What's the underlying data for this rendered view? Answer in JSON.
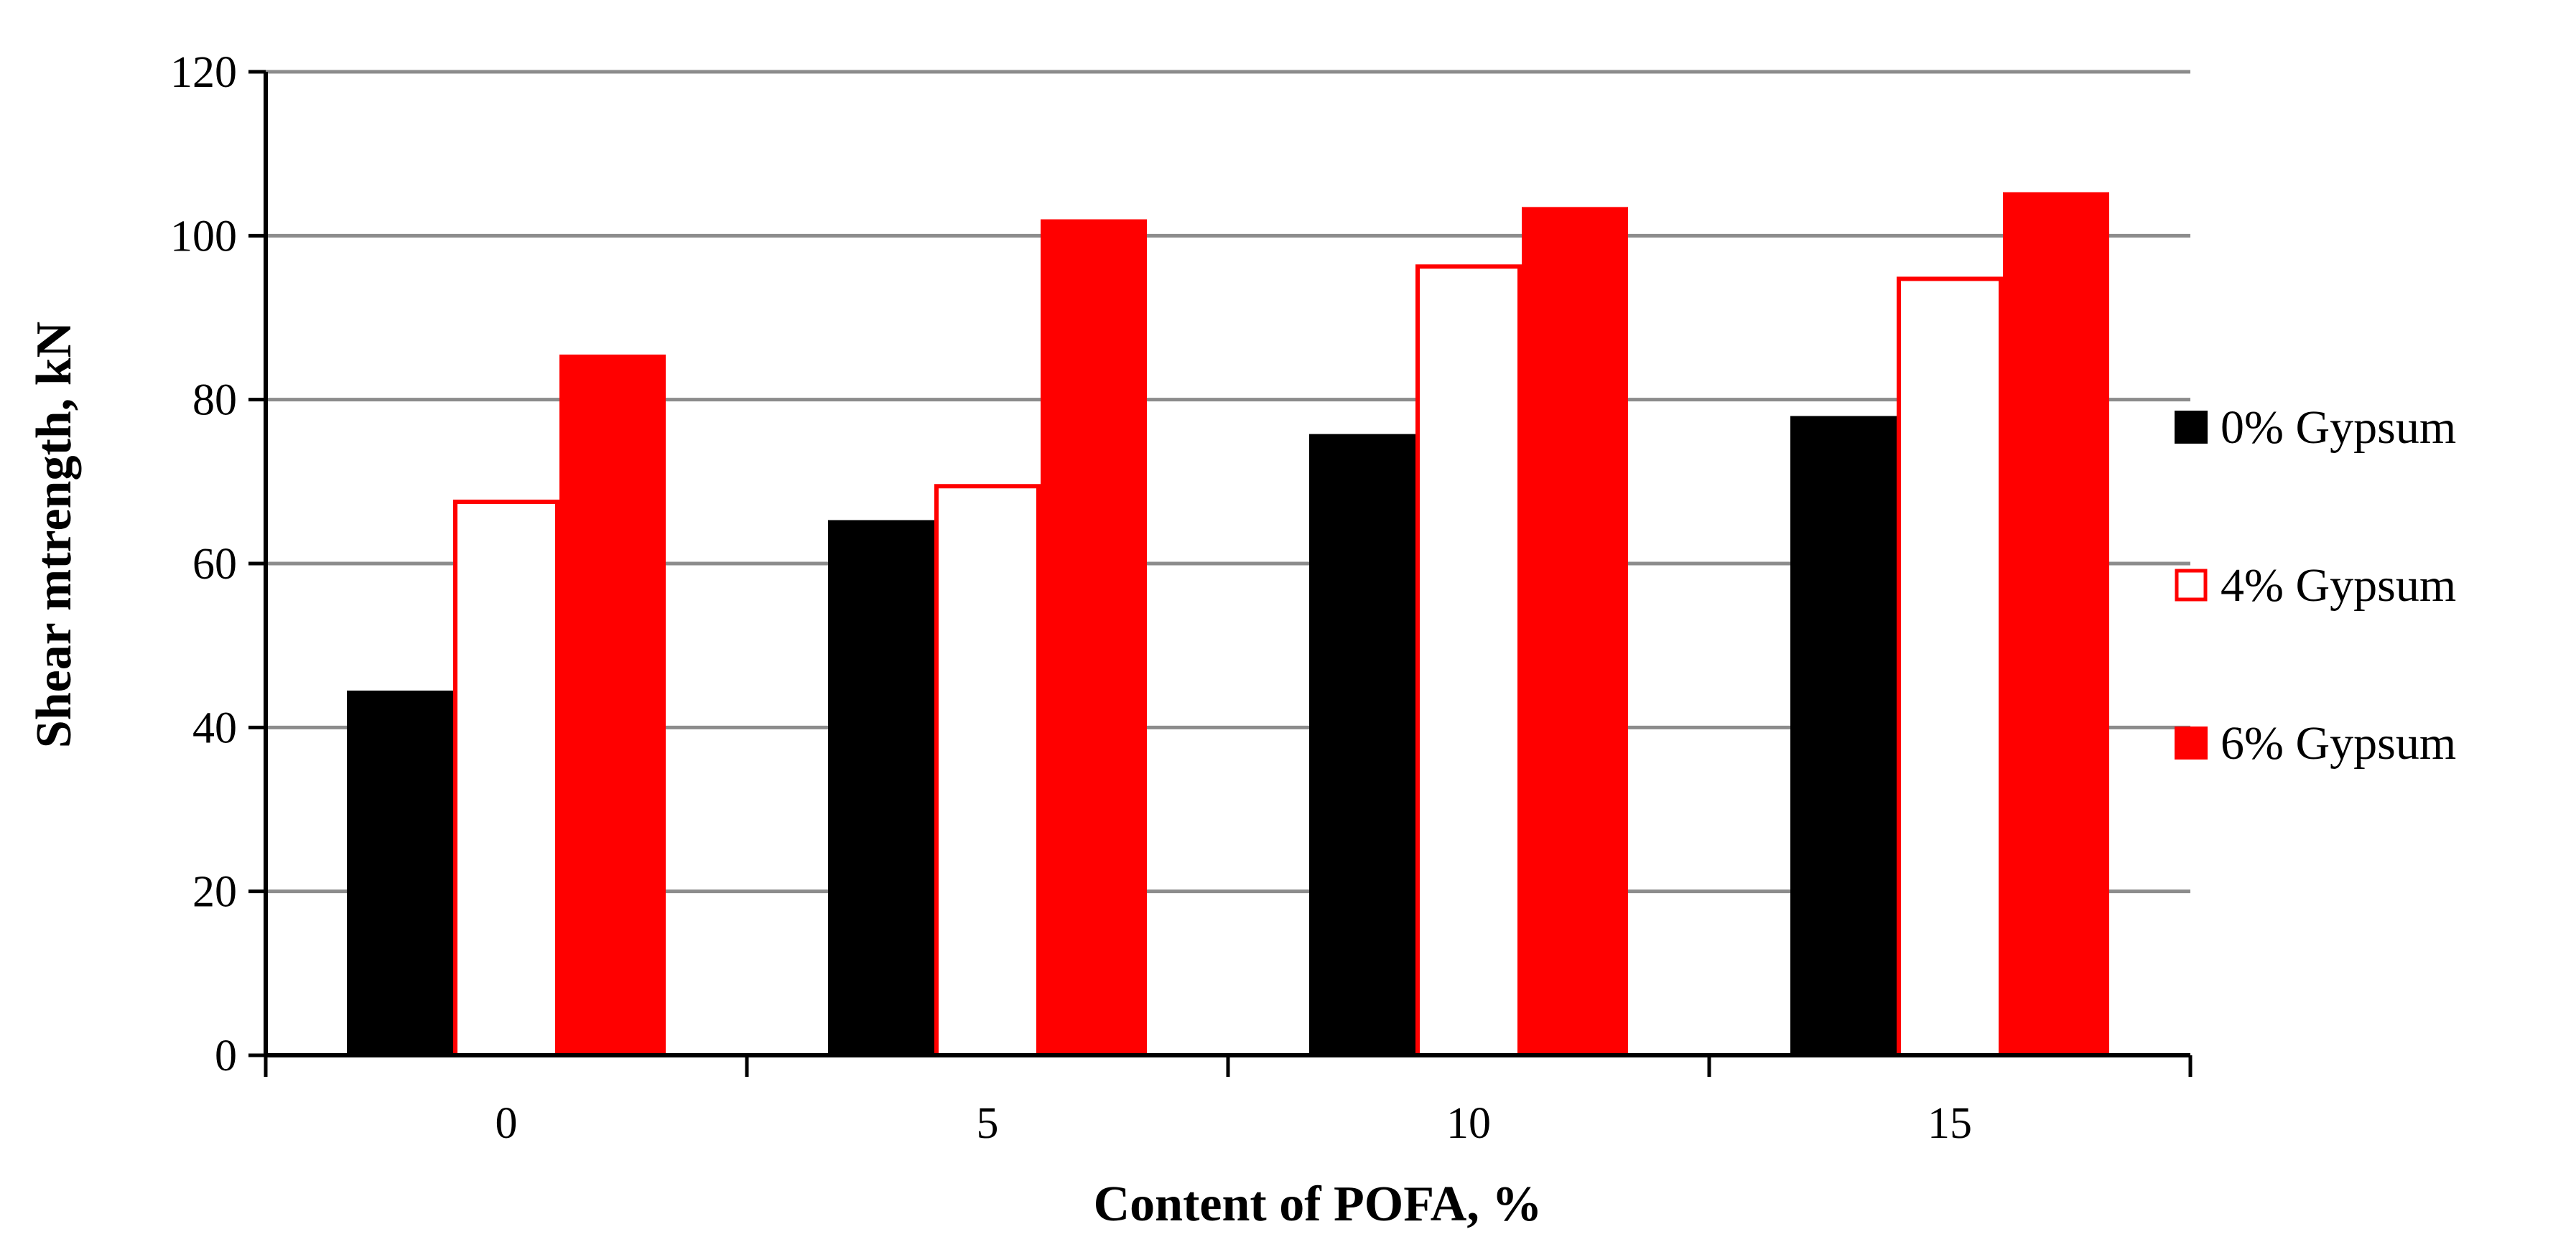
{
  "chart_data": {
    "type": "bar",
    "title": "",
    "xlabel": "Content of POFA, %",
    "ylabel": "Shear mtrength, kN",
    "categories": [
      "0",
      "5",
      "10",
      "15"
    ],
    "series": [
      {
        "name": "0% Gypsum",
        "values": [
          44.5,
          65.3,
          75.8,
          78.0
        ],
        "fill": "#000000",
        "stroke": "#000000"
      },
      {
        "name": "4% Gypsum",
        "values": [
          67.8,
          69.7,
          96.5,
          95.0
        ],
        "fill": "#ffffff",
        "stroke": "#ff0000"
      },
      {
        "name": "6% Gypsum",
        "values": [
          85.5,
          102.0,
          103.5,
          105.3
        ],
        "fill": "#ff0000",
        "stroke": "#ff0000"
      }
    ],
    "yticks": [
      "0",
      "20",
      "40",
      "60",
      "80",
      "100",
      "120"
    ],
    "ylim": [
      0,
      120
    ],
    "grid": true,
    "legend": "right"
  }
}
